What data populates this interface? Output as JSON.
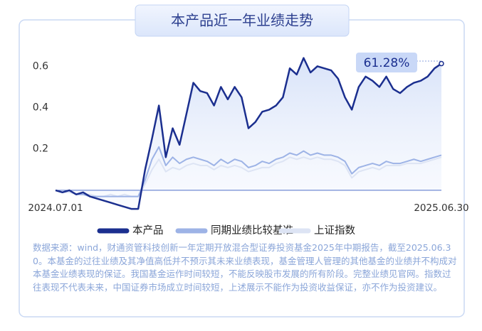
{
  "chart_data": {
    "type": "line",
    "title": "本产品近一年业绩走势",
    "categories": [
      "2024.07.01",
      null,
      null,
      null,
      null,
      null,
      null,
      null,
      null,
      null,
      null,
      null,
      null,
      null,
      null,
      null,
      null,
      null,
      null,
      null,
      null,
      null,
      null,
      null,
      null,
      null,
      null,
      null,
      null,
      null,
      null,
      null,
      null,
      null,
      null,
      null,
      null,
      null,
      null,
      null,
      null,
      null,
      null,
      null,
      null,
      null,
      null,
      null,
      null,
      null,
      null,
      null,
      null,
      null,
      null,
      null,
      "2025.06.30"
    ],
    "series": [
      {
        "name": "本产品",
        "color": "#1b2f8f",
        "values": [
          0,
          -0.01,
          0,
          -0.02,
          -0.01,
          -0.03,
          -0.04,
          -0.05,
          -0.06,
          -0.07,
          -0.08,
          -0.09,
          -0.09,
          0.1,
          0.25,
          0.41,
          0.16,
          0.3,
          0.22,
          0.37,
          0.52,
          0.48,
          0.47,
          0.41,
          0.5,
          0.44,
          0.5,
          0.45,
          0.3,
          0.33,
          0.38,
          0.39,
          0.41,
          0.45,
          0.59,
          0.56,
          0.64,
          0.57,
          0.6,
          0.59,
          0.58,
          0.54,
          0.45,
          0.39,
          0.5,
          0.55,
          0.53,
          0.5,
          0.55,
          0.49,
          0.47,
          0.5,
          0.52,
          0.53,
          0.55,
          0.59,
          0.6128
        ],
        "value_labels": [
          null,
          null,
          null,
          null,
          null,
          null,
          null,
          null,
          null,
          null,
          null,
          null,
          null,
          null,
          null,
          null,
          null,
          null,
          null,
          null,
          null,
          null,
          null,
          null,
          null,
          null,
          null,
          null,
          null,
          null,
          null,
          null,
          null,
          null,
          null,
          null,
          null,
          null,
          null,
          null,
          null,
          null,
          null,
          null,
          null,
          null,
          null,
          null,
          null,
          null,
          null,
          null,
          null,
          null,
          null,
          null,
          "61.28%"
        ]
      },
      {
        "name": "同期业绩比较基准",
        "color": "#9db3e6",
        "values": [
          0,
          -0.01,
          0,
          -0.02,
          -0.02,
          -0.03,
          -0.03,
          -0.03,
          -0.03,
          -0.03,
          -0.03,
          -0.03,
          -0.03,
          0.05,
          0.15,
          0.21,
          0.12,
          0.16,
          0.13,
          0.15,
          0.16,
          0.15,
          0.14,
          0.12,
          0.15,
          0.13,
          0.15,
          0.14,
          0.11,
          0.12,
          0.14,
          0.13,
          0.15,
          0.16,
          0.18,
          0.17,
          0.19,
          0.17,
          0.18,
          0.17,
          0.17,
          0.16,
          0.14,
          0.08,
          0.11,
          0.12,
          0.13,
          0.12,
          0.14,
          0.13,
          0.13,
          0.14,
          0.15,
          0.14,
          0.15,
          0.16,
          0.17
        ]
      },
      {
        "name": "上证指数",
        "color": "#dde4f4",
        "values": [
          0,
          -0.01,
          -0.01,
          -0.02,
          -0.02,
          -0.02,
          -0.03,
          -0.03,
          -0.02,
          -0.03,
          -0.02,
          -0.03,
          -0.03,
          0.03,
          0.1,
          0.15,
          0.09,
          0.11,
          0.1,
          0.12,
          0.13,
          0.12,
          0.12,
          0.1,
          0.12,
          0.11,
          0.12,
          0.11,
          0.09,
          0.1,
          0.11,
          0.11,
          0.13,
          0.14,
          0.16,
          0.15,
          0.16,
          0.15,
          0.16,
          0.15,
          0.15,
          0.14,
          0.12,
          0.06,
          0.09,
          0.1,
          0.11,
          0.1,
          0.12,
          0.12,
          0.12,
          0.13,
          0.13,
          0.13,
          0.14,
          0.15,
          0.16
        ]
      }
    ],
    "ylim": [
      -0.1,
      0.68
    ],
    "yticks": [
      0.2,
      0.4,
      0.6
    ],
    "grid": false,
    "footnote": "数据来源：wind，财通资管科技创新一年定期开放混合型证券投资基金2025年中期报告，截至2025.06.30。本基金的过往业绩及其净值高低并不预示其未来业绩表现，基金管理人管理的其他基金的业绩并不构成对本基金业绩表现的保证。我国基金运作时间较短，不能反映股市发展的所有阶段。完整业绩见官网。指数过往表现不代表未来，中国证券市场成立时间较短，上述展示不能作为投资收益保证，亦不作为投资建议。"
  }
}
